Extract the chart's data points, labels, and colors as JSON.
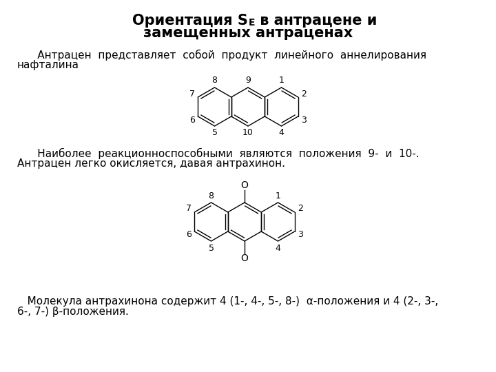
{
  "title1": "Ориентация S",
  "title_sub": "E",
  "title2": " в антрацене и",
  "title3": "замещенных антраценах",
  "para1_line1": "      Антрацен  представляет  собой  продукт  линейного  аннелирования",
  "para1_line2": "нафталина",
  "para2_line1": "      Наиболее  реакционноспособными  являются  положения  9-  и  10-.",
  "para2_line2": "Антрацен легко окисляется, давая антрахинон.",
  "para3_line1": "   Молекула антрахинона содержит 4 (1-, 4-, 5-, 8-)  α-положения и 4 (2-, 3-,",
  "para3_line2": "6-, 7-) β-положения.",
  "bg_color": "#ffffff",
  "text_color": "#000000"
}
